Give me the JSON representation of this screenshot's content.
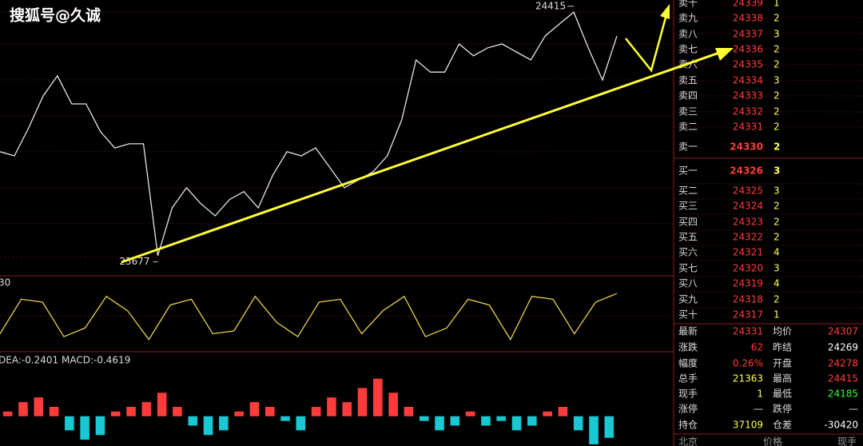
{
  "watermark": "搜狐号@久诚",
  "chart_data": [
    {
      "type": "line",
      "color": "#e6e6e6",
      "ylim": [
        23637,
        24433
      ],
      "values": [
        23995,
        23983,
        24064,
        24156,
        24214,
        24133,
        24133,
        24053,
        24006,
        24018,
        24018,
        23695,
        23833,
        23891,
        23845,
        23810,
        23857,
        23880,
        23833,
        23926,
        23995,
        23983,
        24006,
        23949,
        23891,
        23914,
        23937,
        23983,
        24087,
        24260,
        24225,
        24225,
        24306,
        24272,
        24295,
        24306,
        24283,
        24260,
        24329,
        24364,
        24398,
        24295,
        24202,
        24329
      ],
      "annotations": [
        {
          "value": 24415
        },
        {
          "value": 23677
        }
      ]
    },
    {
      "type": "line",
      "title": "30",
      "color": "#e8d24a",
      "ylim": [
        0,
        100
      ],
      "values": [
        20,
        80,
        75,
        15,
        30,
        85,
        60,
        10,
        70,
        80,
        20,
        25,
        85,
        40,
        15,
        75,
        80,
        20,
        60,
        85,
        15,
        30,
        80,
        70,
        10,
        85,
        80,
        20,
        75,
        90
      ]
    },
    {
      "type": "bar",
      "title": "DEA:-0.2401  MACD:-0.4619",
      "color_up": "#ff3c3c",
      "color_down": "#19c8d2",
      "ylim": [
        -0.6,
        1.0
      ],
      "values": [
        0.1,
        0.3,
        0.4,
        0.2,
        -0.3,
        -0.5,
        -0.4,
        0.1,
        0.2,
        0.3,
        0.5,
        0.2,
        -0.2,
        -0.4,
        -0.3,
        0.1,
        0.3,
        0.2,
        -0.1,
        -0.3,
        0.2,
        0.4,
        0.3,
        0.6,
        0.8,
        0.5,
        0.2,
        -0.1,
        -0.3,
        -0.2,
        0.1,
        -0.2,
        -0.1,
        -0.3,
        -0.2,
        0.1,
        0.2,
        -0.3,
        -0.6,
        -0.46
      ]
    }
  ],
  "order_book": {
    "asks": [
      {
        "label": "卖十",
        "price": 24339,
        "volume": 1
      },
      {
        "label": "卖九",
        "price": 24338,
        "volume": 2
      },
      {
        "label": "卖八",
        "price": 24337,
        "volume": 3
      },
      {
        "label": "卖七",
        "price": 24336,
        "volume": 2
      },
      {
        "label": "卖六",
        "price": 24335,
        "volume": 2
      },
      {
        "label": "卖五",
        "price": 24334,
        "volume": 3
      },
      {
        "label": "卖四",
        "price": 24333,
        "volume": 2
      },
      {
        "label": "卖三",
        "price": 24332,
        "volume": 2
      },
      {
        "label": "卖二",
        "price": 24331,
        "volume": 2
      },
      {
        "label": "卖一",
        "price": 24330,
        "volume": 2
      }
    ],
    "bids": [
      {
        "label": "买一",
        "price": 24326,
        "volume": 3
      },
      {
        "label": "买二",
        "price": 24325,
        "volume": 3
      },
      {
        "label": "买三",
        "price": 24324,
        "volume": 2
      },
      {
        "label": "买四",
        "price": 24323,
        "volume": 2
      },
      {
        "label": "买五",
        "price": 24322,
        "volume": 2
      },
      {
        "label": "买六",
        "price": 24321,
        "volume": 4
      },
      {
        "label": "买七",
        "price": 24320,
        "volume": 3
      },
      {
        "label": "买八",
        "price": 24319,
        "volume": 4
      },
      {
        "label": "买九",
        "price": 24318,
        "volume": 2
      },
      {
        "label": "买十",
        "price": 24317,
        "volume": 1
      }
    ]
  },
  "quote": {
    "rows": [
      [
        "最新",
        24331,
        "均价",
        24307
      ],
      [
        "涨跌",
        62,
        "昨结",
        24269
      ],
      [
        "幅度",
        "0.26%",
        "开盘",
        24278
      ],
      [
        "总手",
        21363,
        "最高",
        24415
      ],
      [
        "现手",
        1,
        "最低",
        24185
      ],
      [
        "涨停",
        "—",
        "跌停",
        "—"
      ],
      [
        "持仓",
        37109,
        "仓差",
        -30420
      ]
    ]
  },
  "footer": [
    "北京",
    "价格",
    "现手"
  ]
}
